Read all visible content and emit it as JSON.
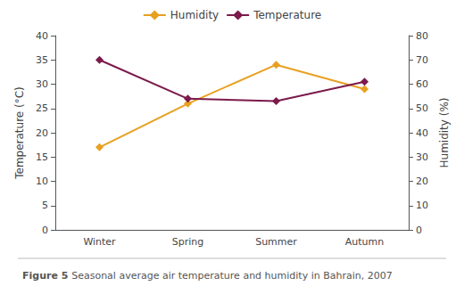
{
  "chart_data": {
    "type": "line",
    "title": "Figure 5",
    "subtitle": "Seasonal average air temperature and humidity in Bahrain, 2007",
    "categories": [
      "Winter",
      "Spring",
      "Summer",
      "Autumn"
    ],
    "series": [
      {
        "name": "Humidity",
        "color": "#e8a020",
        "marker": "diamond",
        "axis": "y2",
        "values": [
          34,
          52,
          68,
          58
        ]
      },
      {
        "name": "Temperature",
        "color": "#7b1a4b",
        "marker": "diamond",
        "values": [
          35,
          27,
          26.5,
          30.5
        ]
      }
    ],
    "ylabel": "Temperature (°C)",
    "y2label": "Humidity (%)",
    "ylim": [
      0,
      40
    ],
    "yticks": [
      0,
      5,
      10,
      15,
      20,
      25,
      30,
      35,
      40
    ],
    "y2lim": [
      0,
      80
    ],
    "y2ticks": [
      0,
      10,
      20,
      30,
      40,
      50,
      60,
      70,
      80
    ],
    "grid": false,
    "legend": "top"
  }
}
